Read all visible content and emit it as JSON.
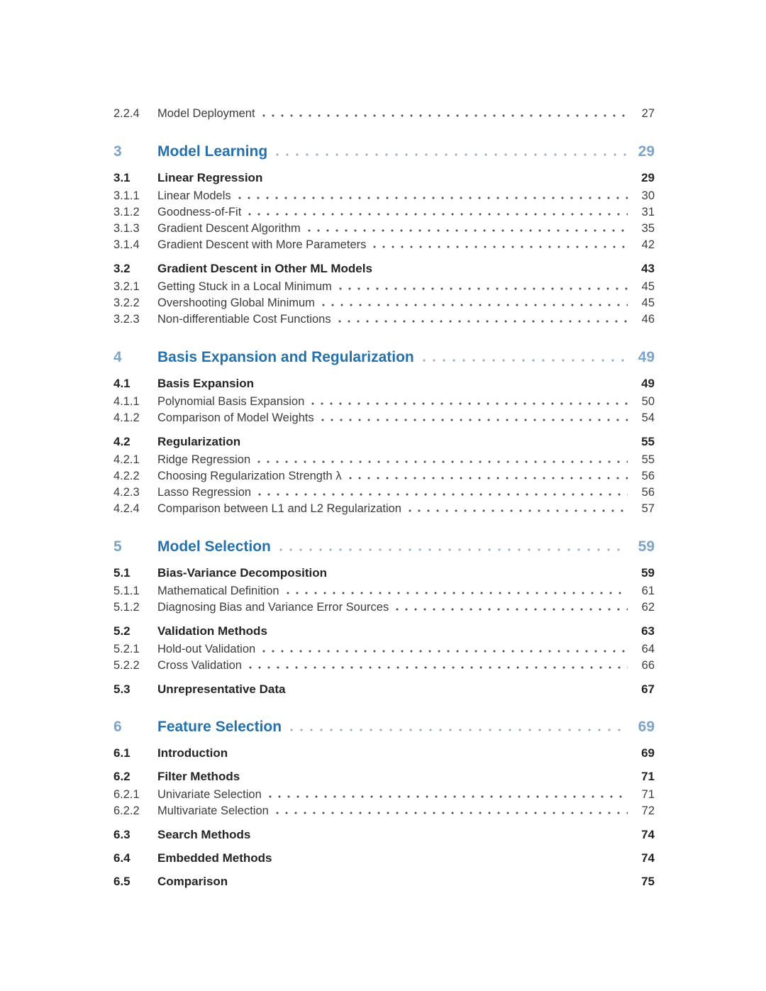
{
  "document": {
    "kind": "table-of-contents-page"
  },
  "colors": {
    "chapter_number": "#7ba4ca",
    "chapter_title": "#2471ae",
    "chapter_page": "#7ba4ca",
    "chapter_dots": "#91aec7",
    "section_text": "#262326",
    "subsection_text": "#3c3c40",
    "subsection_dots": "#4e4e52"
  },
  "toc": {
    "entries": [
      {
        "level": "subsection",
        "number": "2.2.4",
        "title": "Model Deployment",
        "page": "27"
      },
      {
        "level": "chapter",
        "number": "3",
        "title": "Model Learning",
        "page": "29"
      },
      {
        "level": "section",
        "number": "3.1",
        "title": "Linear Regression",
        "page": "29"
      },
      {
        "level": "subsection",
        "number": "3.1.1",
        "title": "Linear Models",
        "page": "30"
      },
      {
        "level": "subsection",
        "number": "3.1.2",
        "title": "Goodness-of-Fit",
        "page": "31"
      },
      {
        "level": "subsection",
        "number": "3.1.3",
        "title": "Gradient Descent Algorithm",
        "page": "35"
      },
      {
        "level": "subsection",
        "number": "3.1.4",
        "title": "Gradient Descent with More Parameters",
        "page": "42"
      },
      {
        "level": "section",
        "number": "3.2",
        "title": "Gradient Descent in Other ML Models",
        "page": "43"
      },
      {
        "level": "subsection",
        "number": "3.2.1",
        "title": "Getting Stuck in a Local Minimum",
        "page": "45"
      },
      {
        "level": "subsection",
        "number": "3.2.2",
        "title": "Overshooting Global Minimum",
        "page": "45"
      },
      {
        "level": "subsection",
        "number": "3.2.3",
        "title": "Non-differentiable Cost Functions",
        "page": "46"
      },
      {
        "level": "chapter",
        "number": "4",
        "title": "Basis Expansion and Regularization",
        "page": "49"
      },
      {
        "level": "section",
        "number": "4.1",
        "title": "Basis Expansion",
        "page": "49"
      },
      {
        "level": "subsection",
        "number": "4.1.1",
        "title": "Polynomial Basis Expansion",
        "page": "50"
      },
      {
        "level": "subsection",
        "number": "4.1.2",
        "title": "Comparison of Model Weights",
        "page": "54"
      },
      {
        "level": "section",
        "number": "4.2",
        "title": "Regularization",
        "page": "55"
      },
      {
        "level": "subsection",
        "number": "4.2.1",
        "title": "Ridge Regression",
        "page": "55"
      },
      {
        "level": "subsection",
        "number": "4.2.2",
        "title": "Choosing Regularization Strength λ",
        "page": "56"
      },
      {
        "level": "subsection",
        "number": "4.2.3",
        "title": "Lasso Regression",
        "page": "56"
      },
      {
        "level": "subsection",
        "number": "4.2.4",
        "title": "Comparison between L1 and L2 Regularization",
        "page": "57"
      },
      {
        "level": "chapter",
        "number": "5",
        "title": "Model Selection",
        "page": "59"
      },
      {
        "level": "section",
        "number": "5.1",
        "title": "Bias-Variance Decomposition",
        "page": "59"
      },
      {
        "level": "subsection",
        "number": "5.1.1",
        "title": "Mathematical Definition",
        "page": "61"
      },
      {
        "level": "subsection",
        "number": "5.1.2",
        "title": "Diagnosing Bias and Variance Error Sources",
        "page": "62"
      },
      {
        "level": "section",
        "number": "5.2",
        "title": "Validation Methods",
        "page": "63"
      },
      {
        "level": "subsection",
        "number": "5.2.1",
        "title": "Hold-out Validation",
        "page": "64"
      },
      {
        "level": "subsection",
        "number": "5.2.2",
        "title": "Cross Validation",
        "page": "66"
      },
      {
        "level": "section",
        "number": "5.3",
        "title": "Unrepresentative Data",
        "page": "67"
      },
      {
        "level": "chapter",
        "number": "6",
        "title": "Feature Selection",
        "page": "69"
      },
      {
        "level": "section",
        "number": "6.1",
        "title": "Introduction",
        "page": "69"
      },
      {
        "level": "section",
        "number": "6.2",
        "title": "Filter Methods",
        "page": "71"
      },
      {
        "level": "subsection",
        "number": "6.2.1",
        "title": "Univariate Selection",
        "page": "71"
      },
      {
        "level": "subsection",
        "number": "6.2.2",
        "title": "Multivariate Selection",
        "page": "72"
      },
      {
        "level": "section",
        "number": "6.3",
        "title": "Search Methods",
        "page": "74"
      },
      {
        "level": "section",
        "number": "6.4",
        "title": "Embedded Methods",
        "page": "74"
      },
      {
        "level": "section",
        "number": "6.5",
        "title": "Comparison",
        "page": "75"
      }
    ]
  }
}
